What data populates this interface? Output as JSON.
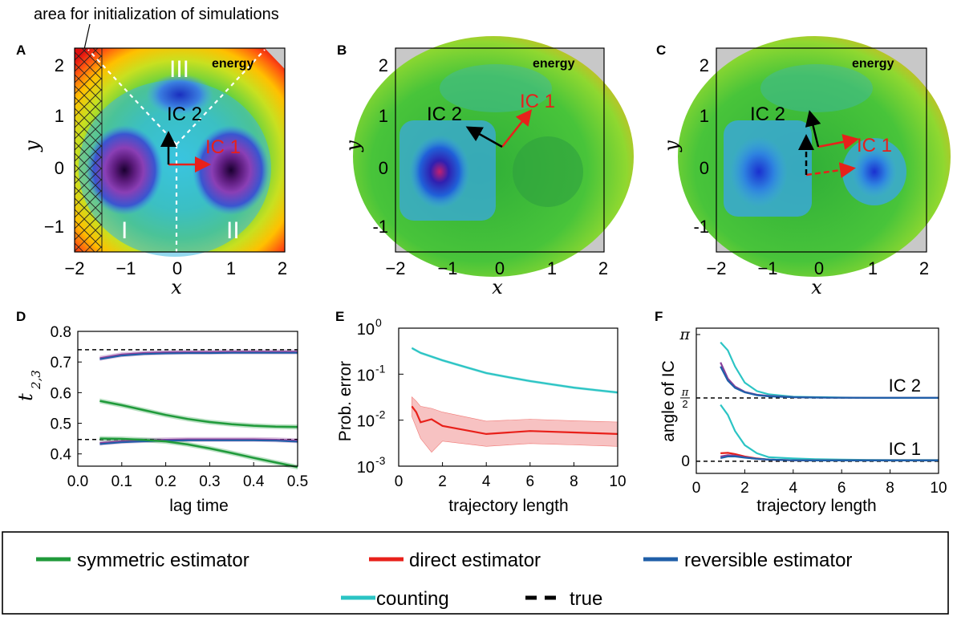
{
  "figure": {
    "init_annotation": "area for initialization of simulations",
    "panel_letters": [
      "A",
      "B",
      "C",
      "D",
      "E",
      "F"
    ],
    "energy_label": "energy",
    "ic1_label": "IC 1",
    "ic2_label": "IC 2",
    "state_labels": [
      "I",
      "II",
      "III"
    ],
    "colors": {
      "red": "#e8201a",
      "black": "#000000",
      "green": "#1f9a3a",
      "blue": "#1f5fa8",
      "cyan": "#2bc4c4",
      "purple": "#8a3f9a"
    }
  },
  "chart_data": [
    {
      "panel": "A",
      "type": "heatmap",
      "xlabel": "x",
      "ylabel": "y",
      "xticks": [
        "−2",
        "−1",
        "0",
        "1",
        "2"
      ],
      "yticks": [
        "2",
        "1",
        "0",
        "−1"
      ],
      "xlim": [
        -2,
        2
      ],
      "ylim": [
        -1.5,
        2.5
      ],
      "minima": [
        {
          "x": -1,
          "y": 0
        },
        {
          "x": 1,
          "y": 0
        },
        {
          "x": 0,
          "y": 1.5
        }
      ]
    },
    {
      "panel": "B",
      "type": "heatmap",
      "xlabel": "x",
      "ylabel": "y",
      "xticks": [
        "−2",
        "−1",
        "0",
        "1",
        "2"
      ],
      "yticks": [
        "2",
        "1",
        "0",
        "-1"
      ],
      "xlim": [
        -2,
        2
      ],
      "ylim": [
        -1.5,
        2.5
      ]
    },
    {
      "panel": "C",
      "type": "heatmap",
      "xlabel": "x",
      "ylabel": "y",
      "xticks": [
        "−2",
        "−1",
        "0",
        "1",
        "2"
      ],
      "yticks": [
        "2",
        "1",
        "0",
        "-1"
      ],
      "xlim": [
        -2,
        2
      ],
      "ylim": [
        -1.5,
        2.5
      ]
    },
    {
      "panel": "D",
      "type": "line",
      "xlabel": "lag time",
      "ylabel": "t",
      "ylabel_sub": "2,3",
      "xlim": [
        0,
        0.5
      ],
      "ylim": [
        0.36,
        0.8
      ],
      "xticks": [
        "0.0",
        "0.1",
        "0.2",
        "0.3",
        "0.4",
        "0.5"
      ],
      "xtick_values": [
        0,
        0.1,
        0.2,
        0.3,
        0.4,
        0.5
      ],
      "yticks": [
        "0.4",
        "0.5",
        "0.6",
        "0.7",
        "0.8"
      ],
      "ytick_values": [
        0.4,
        0.5,
        0.6,
        0.7,
        0.8
      ],
      "x": [
        0.05,
        0.1,
        0.15,
        0.2,
        0.25,
        0.3,
        0.35,
        0.4,
        0.45,
        0.5
      ],
      "true_values": [
        0.74,
        0.447
      ],
      "series": [
        {
          "color": "#8a3f9a",
          "values": [
            0.712,
            0.724,
            0.729,
            0.731,
            0.732,
            0.732,
            0.733,
            0.733,
            0.733,
            0.733
          ]
        },
        {
          "color": "#1f9a3a",
          "values": [
            0.573,
            0.559,
            0.543,
            0.527,
            0.514,
            0.504,
            0.497,
            0.492,
            0.489,
            0.488
          ]
        },
        {
          "color": "#8a3f9a",
          "values": [
            0.435,
            0.441,
            0.444,
            0.446,
            0.447,
            0.447,
            0.447,
            0.447,
            0.446,
            0.443
          ]
        },
        {
          "color": "#1f9a3a",
          "values": [
            0.45,
            0.449,
            0.446,
            0.441,
            0.431,
            0.418,
            0.403,
            0.387,
            0.372,
            0.357
          ]
        }
      ]
    },
    {
      "panel": "E",
      "type": "line",
      "xlabel": "trajectory length",
      "ylabel": "Prob. error",
      "log_y": true,
      "xlim": [
        0,
        10
      ],
      "ylim_exp": [
        -3,
        0
      ],
      "xticks": [
        "0",
        "2",
        "4",
        "6",
        "8",
        "10"
      ],
      "xtick_values": [
        0,
        2,
        4,
        6,
        8,
        10
      ],
      "yticks_base": "10",
      "ytick_exponents": [
        "0",
        "-1",
        "-2",
        "-3"
      ],
      "series": [
        {
          "color": "#2bc4c4",
          "x": [
            0.6,
            1,
            2,
            3,
            4,
            5,
            6,
            7,
            8,
            9,
            10
          ],
          "values": [
            0.37,
            0.29,
            0.2,
            0.145,
            0.106,
            0.086,
            0.071,
            0.06,
            0.051,
            0.045,
            0.04
          ]
        },
        {
          "color": "#e8201a",
          "x": [
            0.6,
            0.8,
            1,
            1.5,
            2,
            4,
            6,
            8,
            10
          ],
          "values": [
            0.02,
            0.015,
            0.009,
            0.0105,
            0.0075,
            0.005,
            0.0058,
            0.0054,
            0.005
          ],
          "band_low": [
            0.012,
            0.007,
            0.004,
            0.002,
            0.0035,
            0.0027,
            0.0031,
            0.0029,
            0.0027
          ],
          "band_high": [
            0.032,
            0.026,
            0.02,
            0.018,
            0.015,
            0.0095,
            0.0105,
            0.0097,
            0.0091
          ]
        }
      ]
    },
    {
      "panel": "F",
      "type": "line",
      "xlabel": "trajectory length",
      "ylabel": "angle of IC",
      "xlim": [
        0,
        10
      ],
      "ylim": [
        -0.3,
        3.3
      ],
      "xticks": [
        "0",
        "2",
        "4",
        "6",
        "8",
        "10"
      ],
      "xtick_values": [
        0,
        2,
        4,
        6,
        8,
        10
      ],
      "yticks": [
        "π",
        "π/2",
        "0"
      ],
      "ytick_values": [
        3.1416,
        1.5708,
        0
      ],
      "curve_labels": [
        "IC 2",
        "IC 1"
      ],
      "true_values": [
        0,
        1.5708
      ],
      "x": [
        1,
        1.3,
        1.6,
        2,
        2.5,
        3,
        4,
        5,
        6,
        7,
        8,
        9,
        10
      ],
      "series": [
        {
          "color": "#2bc4c4",
          "values": [
            2.95,
            2.75,
            2.35,
            1.95,
            1.74,
            1.66,
            1.6,
            1.59,
            1.58,
            1.575,
            1.573,
            1.571,
            1.571
          ]
        },
        {
          "color": "#8a3f9a",
          "values": [
            2.45,
            2.05,
            1.85,
            1.72,
            1.65,
            1.62,
            1.59,
            1.58,
            1.575,
            1.573,
            1.571,
            1.571,
            1.571
          ]
        },
        {
          "color": "#1f5fa8",
          "values": [
            2.35,
            2.0,
            1.82,
            1.71,
            1.64,
            1.61,
            1.59,
            1.58,
            1.575,
            1.573,
            1.571,
            1.571,
            1.571
          ]
        },
        {
          "color": "#2bc4c4",
          "values": [
            1.4,
            1.15,
            0.75,
            0.4,
            0.2,
            0.1,
            0.07,
            0.05,
            0.04,
            0.035,
            0.03,
            0.03,
            0.03
          ]
        },
        {
          "color": "#e8201a",
          "values": [
            0.2,
            0.21,
            0.18,
            0.12,
            0.07,
            0.04,
            0.025,
            0.02,
            0.02,
            0.02,
            0.02,
            0.02,
            0.02
          ]
        },
        {
          "color": "#8a3f9a",
          "values": [
            0.12,
            0.15,
            0.14,
            0.1,
            0.06,
            0.04,
            0.025,
            0.02,
            0.02,
            0.02,
            0.02,
            0.02,
            0.02
          ]
        },
        {
          "color": "#1f5fa8",
          "values": [
            0.08,
            0.12,
            0.12,
            0.09,
            0.06,
            0.04,
            0.025,
            0.02,
            0.02,
            0.02,
            0.02,
            0.02,
            0.02
          ]
        }
      ]
    }
  ],
  "legend": {
    "items": [
      {
        "label": "symmetric estimator",
        "color": "#1f9a3a",
        "dashed": false
      },
      {
        "label": "direct estimator",
        "color": "#e8201a",
        "dashed": false
      },
      {
        "label": "reversible estimator",
        "color": "#1f5fa8",
        "dashed": false
      },
      {
        "label": "counting",
        "color": "#2bc4c4",
        "dashed": false
      },
      {
        "label": "true",
        "color": "#000000",
        "dashed": true
      }
    ]
  }
}
